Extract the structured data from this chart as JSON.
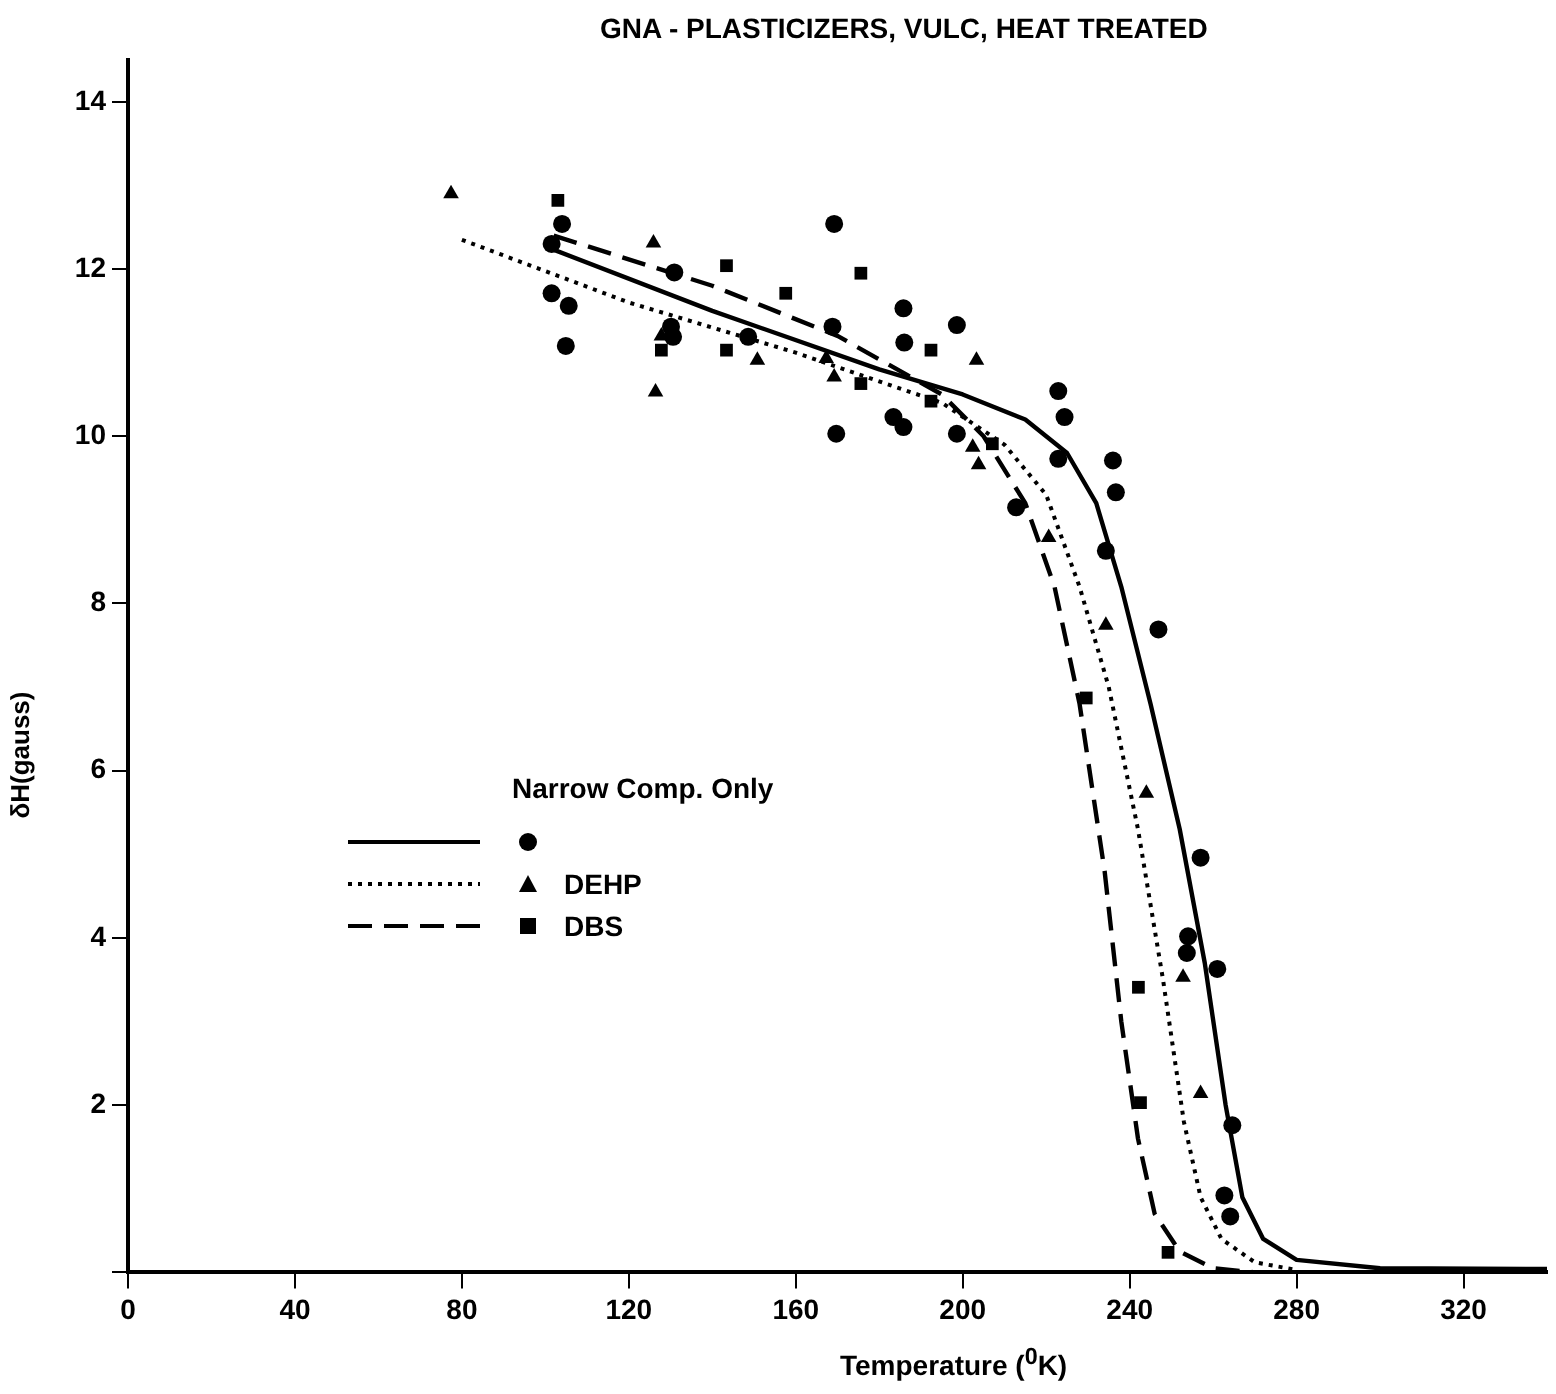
{
  "chart_data": {
    "type": "scatter",
    "title": "GNA - PLASTICIZERS, VULC, HEAT TREATED",
    "xlabel": "Temperature ($^{0}$K)",
    "ylabel": "δH(gauss)",
    "legend_title": "Narrow Comp. Only",
    "legend": "left",
    "grid": false,
    "xlim": [
      0,
      340
    ],
    "xticks": [
      0,
      40,
      80,
      120,
      160,
      200,
      240,
      280,
      320
    ],
    "ylim": [
      0,
      14.5
    ],
    "yticks": [
      {
        "value": 0,
        "label": null
      },
      2,
      4,
      6,
      8,
      10,
      12,
      14
    ],
    "series": [
      {
        "type": "line",
        "color": "#000000",
        "line_style": "solid",
        "marker": "none",
        "x": [
          101,
          140,
          180,
          200,
          215,
          225,
          232,
          238,
          245,
          252,
          258,
          263,
          267,
          272,
          280,
          300,
          340
        ],
        "values": [
          12.25,
          11.5,
          10.8,
          10.5,
          10.2,
          9.8,
          9.2,
          8.2,
          6.8,
          5.3,
          3.7,
          2.0,
          0.9,
          0.4,
          0.15,
          0.05,
          0.04
        ]
      },
      {
        "type": "line",
        "color": "#000000",
        "line_style": "dotted",
        "marker": "none",
        "x": [
          80,
          120,
          160,
          195,
          210,
          220,
          228,
          235,
          242,
          248,
          253,
          257,
          262,
          270,
          280
        ],
        "values": [
          12.35,
          11.6,
          11.0,
          10.4,
          9.9,
          9.3,
          8.2,
          7.0,
          5.3,
          3.5,
          1.8,
          0.9,
          0.4,
          0.12,
          0.03
        ]
      },
      {
        "type": "line",
        "color": "#000000",
        "line_style": "dashed",
        "marker": "none",
        "x": [
          102,
          140,
          170,
          195,
          205,
          215,
          222,
          228,
          234,
          238,
          242,
          246,
          252,
          260,
          270
        ],
        "values": [
          12.4,
          11.8,
          11.2,
          10.5,
          10.0,
          9.2,
          8.2,
          6.8,
          4.8,
          3.0,
          1.6,
          0.7,
          0.25,
          0.05,
          0.0
        ]
      },
      {
        "type": "scatter",
        "color": "#000000",
        "marker": "circle",
        "x": [
          101.5,
          104,
          101.5,
          105.6,
          104.9,
          130.9,
          130.1,
          130.6,
          148.6,
          169.2,
          168.8,
          169.7,
          185.8,
          186,
          183.4,
          185.8,
          198.6,
          198.6,
          212.8,
          222.9,
          224.4,
          222.9,
          236,
          236.7,
          234.3,
          246.9,
          257,
          254,
          253.7,
          261,
          264.6,
          262.7,
          264.1
        ],
        "values": [
          12.3,
          12.54,
          11.71,
          11.56,
          11.08,
          11.96,
          11.31,
          11.19,
          11.19,
          12.54,
          11.31,
          10.03,
          11.53,
          11.12,
          10.23,
          10.11,
          11.33,
          10.03,
          9.15,
          10.54,
          10.23,
          9.73,
          9.71,
          9.33,
          8.63,
          7.69,
          4.96,
          4.02,
          3.82,
          3.63,
          1.76,
          0.92,
          0.67
        ]
      },
      {
        "type": "scatter",
        "name": "DEHP",
        "color": "#000000",
        "marker": "triangle",
        "x": [
          77.4,
          125.9,
          126.4,
          127.8,
          150.8,
          167.3,
          169.2,
          203.3,
          202.4,
          203.8,
          220.6,
          234.3,
          244,
          252.8,
          257
        ],
        "values": [
          12.9,
          12.31,
          10.53,
          11.2,
          10.91,
          10.93,
          10.71,
          10.91,
          9.87,
          9.66,
          8.79,
          7.74,
          5.73,
          3.53,
          2.14
        ]
      },
      {
        "type": "scatter",
        "name": "DBS",
        "color": "#000000",
        "marker": "square",
        "x": [
          103,
          127.8,
          143.4,
          143.4,
          157.6,
          175.6,
          175.6,
          192.4,
          192.4,
          207.1,
          229.6,
          242.1,
          242.6,
          249.2
        ],
        "values": [
          12.82,
          11.03,
          12.04,
          11.03,
          11.71,
          11.95,
          10.63,
          11.03,
          10.42,
          9.91,
          6.87,
          3.41,
          2.03,
          0.24
        ]
      }
    ]
  }
}
